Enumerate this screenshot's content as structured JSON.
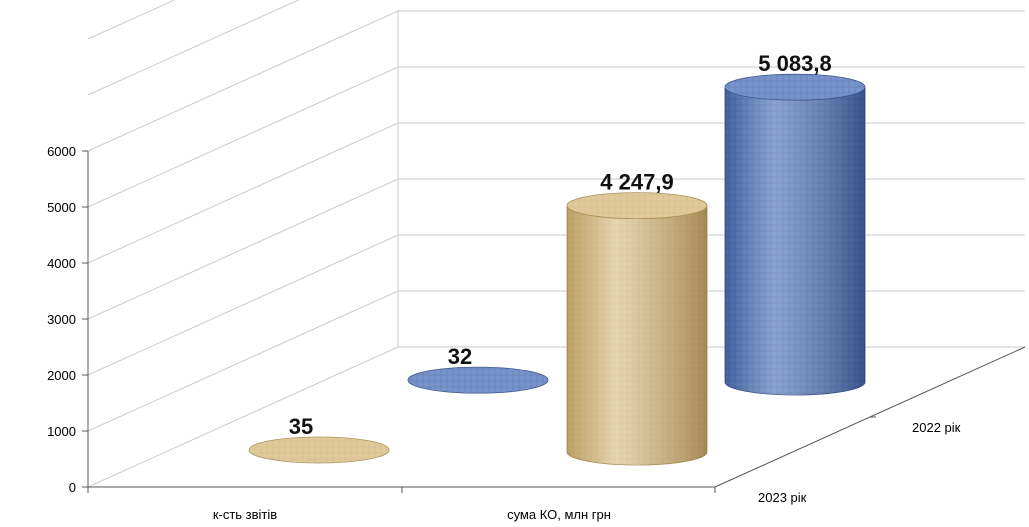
{
  "chart_data": {
    "type": "bar",
    "style": "3d-cylinder",
    "categories": [
      "к-сть звітів",
      "сума КО, млн грн"
    ],
    "series": [
      {
        "name": "2023 рік",
        "values": [
          35,
          4247.9
        ],
        "labels": [
          "35",
          "4 247,9"
        ],
        "color": "#cdb07a"
      },
      {
        "name": "2022 рік",
        "values": [
          32,
          5083.8
        ],
        "labels": [
          "32",
          "5 083,8"
        ],
        "color": "#4f6fb0"
      }
    ],
    "y_ticks": [
      "0",
      "1000",
      "2000",
      "3000",
      "4000",
      "5000",
      "6000"
    ],
    "ylim": [
      0,
      6000
    ],
    "grid": true,
    "legend": "none"
  }
}
